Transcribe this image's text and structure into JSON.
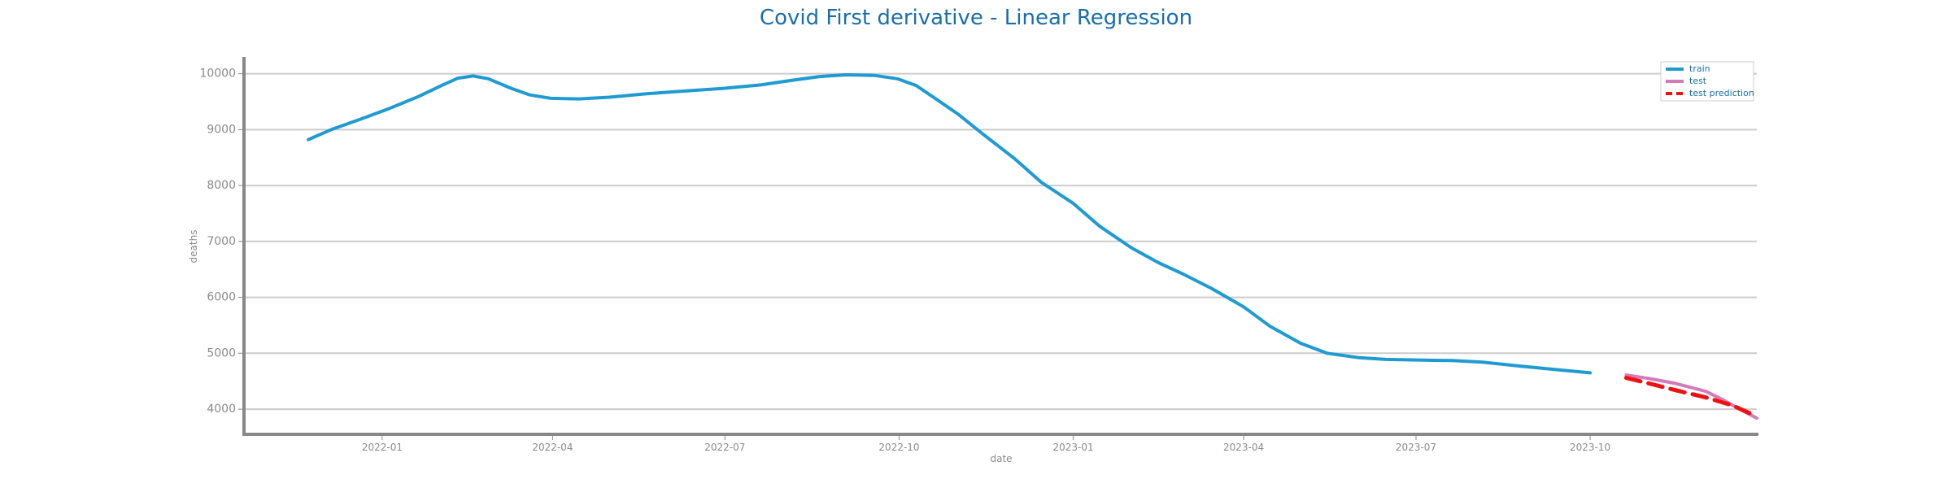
{
  "chart_data": {
    "type": "line",
    "title": "Covid First derivative - Linear Regression",
    "xlabel": "date",
    "ylabel": "deaths",
    "x_ticks": [
      "2022-01",
      "2022-04",
      "2022-07",
      "2022-10",
      "2023-01",
      "2023-04",
      "2023-07",
      "2023-10"
    ],
    "y_ticks": [
      4000,
      5000,
      6000,
      7000,
      8000,
      9000,
      10000
    ],
    "xlim": [
      "2021-10-20",
      "2023-12-28"
    ],
    "ylim": [
      3550,
      10300
    ],
    "grid": "horizontal",
    "legend_position": "top-right",
    "series": [
      {
        "name": "train",
        "color": "#1f9bd1",
        "style": "solid",
        "points": [
          [
            "2021-11-23",
            8820
          ],
          [
            "2021-12-05",
            9000
          ],
          [
            "2021-12-20",
            9180
          ],
          [
            "2022-01-05",
            9380
          ],
          [
            "2022-01-20",
            9590
          ],
          [
            "2022-02-02",
            9800
          ],
          [
            "2022-02-10",
            9920
          ],
          [
            "2022-02-18",
            9960
          ],
          [
            "2022-02-26",
            9910
          ],
          [
            "2022-03-10",
            9740
          ],
          [
            "2022-03-20",
            9620
          ],
          [
            "2022-03-31",
            9560
          ],
          [
            "2022-04-15",
            9550
          ],
          [
            "2022-05-01",
            9580
          ],
          [
            "2022-05-20",
            9640
          ],
          [
            "2022-06-10",
            9690
          ],
          [
            "2022-07-01",
            9740
          ],
          [
            "2022-07-20",
            9800
          ],
          [
            "2022-08-05",
            9880
          ],
          [
            "2022-08-20",
            9950
          ],
          [
            "2022-09-03",
            9980
          ],
          [
            "2022-09-18",
            9970
          ],
          [
            "2022-09-30",
            9910
          ],
          [
            "2022-10-10",
            9790
          ],
          [
            "2022-10-20",
            9560
          ],
          [
            "2022-11-01",
            9280
          ],
          [
            "2022-11-15",
            8900
          ],
          [
            "2022-12-01",
            8480
          ],
          [
            "2022-12-15",
            8060
          ],
          [
            "2023-01-01",
            7680
          ],
          [
            "2023-01-15",
            7270
          ],
          [
            "2023-02-01",
            6880
          ],
          [
            "2023-02-15",
            6620
          ],
          [
            "2023-03-01",
            6400
          ],
          [
            "2023-03-15",
            6160
          ],
          [
            "2023-04-01",
            5830
          ],
          [
            "2023-04-15",
            5480
          ],
          [
            "2023-05-01",
            5180
          ],
          [
            "2023-05-15",
            5000
          ],
          [
            "2023-06-01",
            4920
          ],
          [
            "2023-06-15",
            4890
          ],
          [
            "2023-07-01",
            4880
          ],
          [
            "2023-07-20",
            4870
          ],
          [
            "2023-08-05",
            4840
          ],
          [
            "2023-08-25",
            4770
          ],
          [
            "2023-09-15",
            4700
          ],
          [
            "2023-10-01",
            4650
          ]
        ]
      },
      {
        "name": "test",
        "color": "#d47ab9",
        "style": "solid",
        "points": [
          [
            "2023-10-20",
            4610
          ],
          [
            "2023-11-01",
            4550
          ],
          [
            "2023-11-15",
            4460
          ],
          [
            "2023-12-01",
            4320
          ],
          [
            "2023-12-10",
            4170
          ],
          [
            "2023-12-19",
            4000
          ],
          [
            "2023-12-28",
            3840
          ]
        ]
      },
      {
        "name": "test prediction",
        "color": "#ee1111",
        "style": "dashed",
        "points": [
          [
            "2023-10-20",
            4560
          ],
          [
            "2023-11-01",
            4460
          ],
          [
            "2023-11-15",
            4340
          ],
          [
            "2023-12-01",
            4210
          ],
          [
            "2023-12-15",
            4070
          ],
          [
            "2023-12-28",
            3870
          ]
        ]
      }
    ]
  }
}
